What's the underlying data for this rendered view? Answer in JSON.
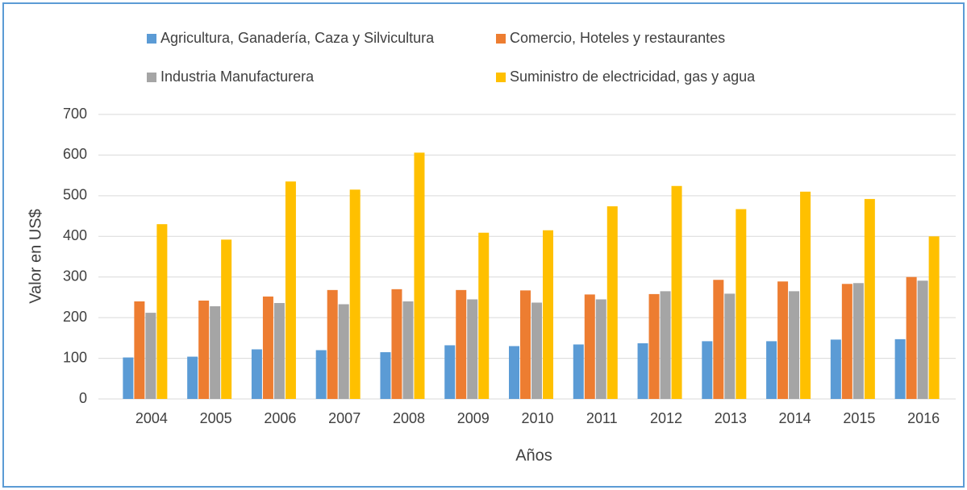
{
  "chart_data": {
    "type": "bar",
    "x_label": "Años",
    "y_label": "Valor en US$",
    "categories": [
      "2004",
      "2005",
      "2006",
      "2007",
      "2008",
      "2009",
      "2010",
      "2011",
      "2012",
      "2013",
      "2014",
      "2015",
      "2016"
    ],
    "series": [
      {
        "name": "Agricultura, Ganadería, Caza y Silvicultura",
        "color": "#5b9bd5",
        "values": [
          102,
          104,
          122,
          120,
          115,
          132,
          130,
          134,
          137,
          142,
          142,
          146,
          147
        ]
      },
      {
        "name": "Comercio, Hoteles y restaurantes",
        "color": "#ed7d31",
        "values": [
          240,
          242,
          252,
          268,
          270,
          268,
          267,
          257,
          258,
          293,
          289,
          283,
          300
        ]
      },
      {
        "name": "Industria Manufacturera",
        "color": "#a5a5a5",
        "values": [
          212,
          228,
          236,
          233,
          240,
          245,
          237,
          245,
          265,
          259,
          265,
          285,
          291
        ]
      },
      {
        "name": "Suministro de electricidad, gas y agua",
        "color": "#ffc000",
        "values": [
          430,
          392,
          535,
          515,
          606,
          409,
          415,
          474,
          524,
          467,
          510,
          492,
          400
        ]
      }
    ],
    "ylim": [
      0,
      700
    ],
    "yticks": [
      0,
      100,
      200,
      300,
      400,
      500,
      600,
      700
    ],
    "grid": true,
    "legend": "top"
  }
}
